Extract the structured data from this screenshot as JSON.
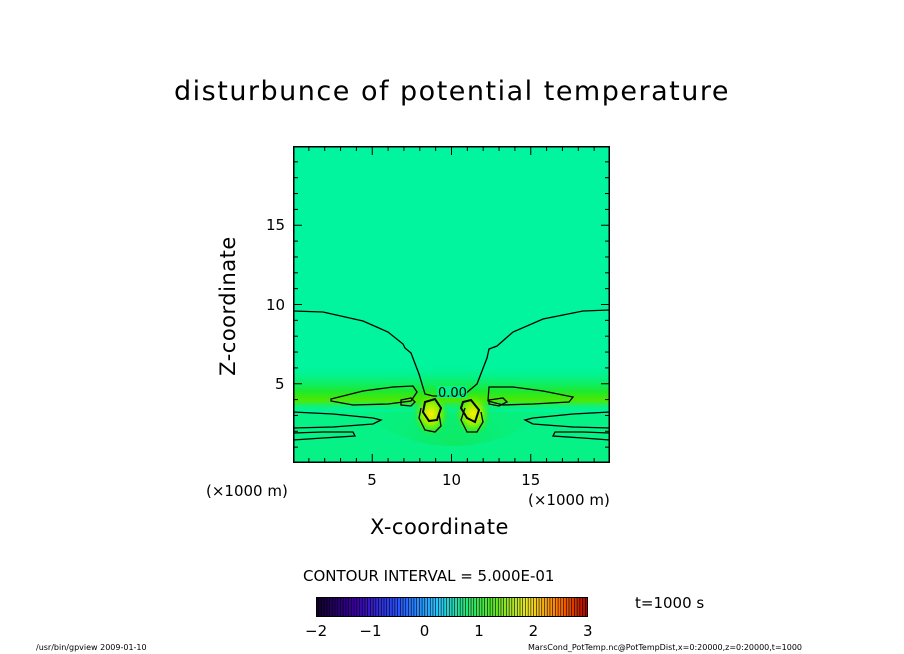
{
  "chart_data": {
    "type": "heatmap",
    "title": "disturbunce of potential temperature",
    "xlabel": "X-coordinate",
    "ylabel": "Z-coordinate",
    "xlim": [
      0,
      20
    ],
    "ylim": [
      0,
      20
    ],
    "x_ticks": [
      "5",
      "10",
      "15"
    ],
    "y_ticks": [
      "5",
      "10",
      "15"
    ],
    "x_unit": "(×1000 m)",
    "y_unit": "(×1000 m)",
    "contour_interval": "CONTOUR INTERVAL = 5.000E-01",
    "contour_labels": [
      "0.00"
    ],
    "colorbar": {
      "min": -2,
      "max": 3,
      "ticks": [
        "−2",
        "−1",
        "0",
        "1",
        "2",
        "3"
      ]
    },
    "time_label": "t=1000 s"
  },
  "footer": {
    "left": "/usr/bin/gpview   2009-01-10",
    "right": "MarsCond_PotTemp.nc@PotTempDist,x=0:20000,z=0:20000,t=1000"
  },
  "colors": {
    "background_field": "#00f59e",
    "contour_line": "#000000"
  }
}
